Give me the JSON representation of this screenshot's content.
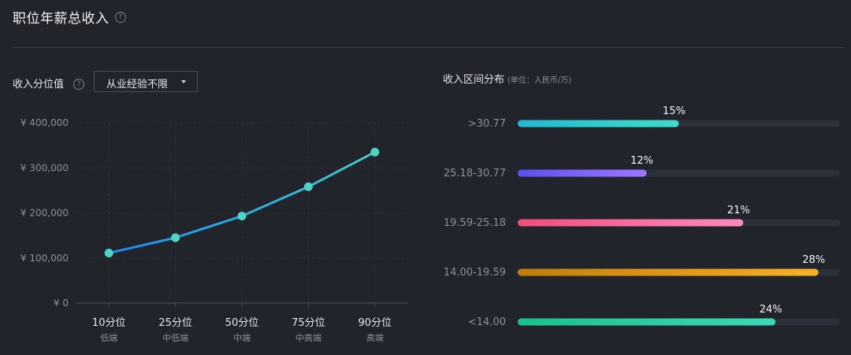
{
  "header": {
    "title": "职位年薪总收入",
    "help_icon": "question-circle-icon"
  },
  "percentile_section": {
    "label": "收入分位值",
    "help_icon": "question-circle-icon",
    "dropdown": {
      "selected": "从业经验不限",
      "icon": "caret-down-icon"
    }
  },
  "distribution_section": {
    "label": "收入区间分布",
    "unit": "(单位：人民币/万)"
  },
  "chart_data": [
    {
      "type": "line",
      "title": "收入分位值",
      "categories": [
        "10分位",
        "25分位",
        "50分位",
        "75分位",
        "90分位"
      ],
      "sublabels": [
        "低端",
        "中低端",
        "中端",
        "中高端",
        "高端"
      ],
      "values": [
        111000,
        145000,
        193000,
        258000,
        335000
      ],
      "y_ticks": [
        0,
        100000,
        200000,
        300000,
        400000
      ],
      "y_tick_labels": [
        "¥ 0",
        "¥ 100,000",
        "¥ 200,000",
        "¥ 300,000",
        "¥ 400,000"
      ],
      "ylim": [
        0,
        400000
      ],
      "grid": true,
      "colors": {
        "line_start": "#1a8cf0",
        "line_end": "#45c8c9",
        "point": "#4fd3c4"
      }
    },
    {
      "type": "bar",
      "title": "收入区间分布",
      "unit": "(单位：人民币/万)",
      "orientation": "horizontal",
      "categories": [
        ">30.77",
        "25.18-30.77",
        "19.59-25.18",
        "14.00-19.59",
        "<14.00"
      ],
      "values": [
        15,
        12,
        21,
        28,
        24
      ],
      "value_labels": [
        "15%",
        "12%",
        "21%",
        "28%",
        "24%"
      ],
      "max": 30,
      "colors": [
        [
          "#22b8d0",
          "#40dcc8"
        ],
        [
          "#5c4ff0",
          "#9e78ff"
        ],
        [
          "#f04e7c",
          "#ff8cc0"
        ],
        [
          "#c07e0a",
          "#f7b12a"
        ],
        [
          "#18c28a",
          "#3ed8b6"
        ]
      ],
      "track_color": "#2c3038"
    }
  ]
}
